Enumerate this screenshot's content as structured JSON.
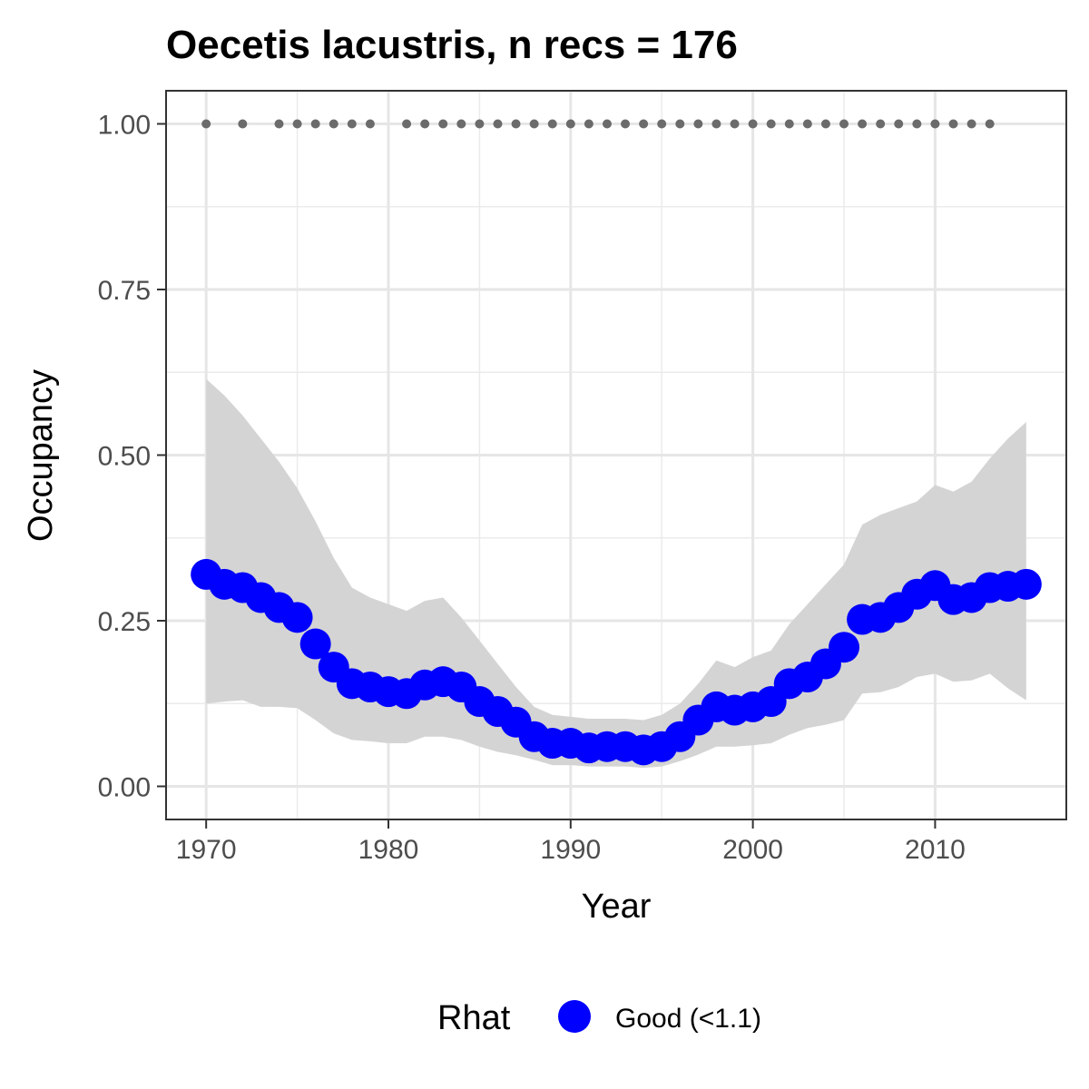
{
  "chart_data": {
    "type": "line",
    "title": "Oecetis lacustris, n recs = 176",
    "xlabel": "Year",
    "ylabel": "Occupancy",
    "xlim": [
      1967.8,
      2017.2
    ],
    "ylim": [
      -0.05,
      1.05
    ],
    "x_ticks": [
      1970,
      1980,
      1990,
      2000,
      2010
    ],
    "x_tick_labels": [
      "1970",
      "1980",
      "1990",
      "2000",
      "2010"
    ],
    "y_ticks": [
      0,
      0.25,
      0.5,
      0.75,
      1.0
    ],
    "y_tick_labels": [
      "0.00",
      "0.25",
      "0.50",
      "0.75",
      "1.00"
    ],
    "grid": true,
    "legend": {
      "title": "Rhat",
      "position": "bottom",
      "entries": [
        {
          "label": "Good (<1.1)",
          "color": "#0000ff"
        }
      ]
    },
    "x": [
      1970,
      1971,
      1972,
      1973,
      1974,
      1975,
      1976,
      1977,
      1978,
      1979,
      1980,
      1981,
      1982,
      1983,
      1984,
      1985,
      1986,
      1987,
      1988,
      1989,
      1990,
      1991,
      1992,
      1993,
      1994,
      1995,
      1996,
      1997,
      1998,
      1999,
      2000,
      2001,
      2002,
      2003,
      2004,
      2005,
      2006,
      2007,
      2008,
      2009,
      2010,
      2011,
      2012,
      2013,
      2014,
      2015
    ],
    "series": [
      {
        "role": "occupancy_mean",
        "color": "#0000ff",
        "values": [
          0.32,
          0.305,
          0.3,
          0.285,
          0.27,
          0.255,
          0.215,
          0.18,
          0.155,
          0.15,
          0.143,
          0.14,
          0.153,
          0.158,
          0.15,
          0.128,
          0.113,
          0.097,
          0.075,
          0.065,
          0.065,
          0.058,
          0.06,
          0.06,
          0.055,
          0.06,
          0.075,
          0.1,
          0.12,
          0.115,
          0.12,
          0.128,
          0.155,
          0.165,
          0.185,
          0.21,
          0.252,
          0.255,
          0.27,
          0.29,
          0.303,
          0.282,
          0.285,
          0.3,
          0.302,
          0.305
        ]
      },
      {
        "role": "credible_interval",
        "color": "#d4d4d4",
        "upper": [
          0.615,
          0.59,
          0.56,
          0.525,
          0.49,
          0.45,
          0.4,
          0.345,
          0.3,
          0.285,
          0.275,
          0.265,
          0.28,
          0.285,
          0.255,
          0.22,
          0.185,
          0.15,
          0.12,
          0.108,
          0.105,
          0.102,
          0.102,
          0.102,
          0.1,
          0.108,
          0.125,
          0.155,
          0.19,
          0.18,
          0.195,
          0.205,
          0.245,
          0.275,
          0.305,
          0.335,
          0.395,
          0.41,
          0.42,
          0.43,
          0.455,
          0.445,
          0.46,
          0.495,
          0.525,
          0.55
        ],
        "lower": [
          0.125,
          0.128,
          0.13,
          0.12,
          0.12,
          0.118,
          0.1,
          0.08,
          0.07,
          0.068,
          0.065,
          0.065,
          0.075,
          0.075,
          0.07,
          0.06,
          0.052,
          0.047,
          0.04,
          0.032,
          0.032,
          0.03,
          0.03,
          0.03,
          0.028,
          0.03,
          0.038,
          0.048,
          0.06,
          0.06,
          0.062,
          0.065,
          0.078,
          0.088,
          0.093,
          0.1,
          0.14,
          0.142,
          0.15,
          0.165,
          0.17,
          0.158,
          0.16,
          0.17,
          0.148,
          0.13
        ]
      },
      {
        "role": "record_years",
        "color": "#6b6b6b",
        "x": [
          1970,
          1972,
          1974,
          1975,
          1976,
          1977,
          1978,
          1979,
          1981,
          1982,
          1983,
          1984,
          1985,
          1986,
          1987,
          1988,
          1989,
          1990,
          1991,
          1992,
          1993,
          1994,
          1995,
          1996,
          1997,
          1998,
          1999,
          2000,
          2001,
          2002,
          2003,
          2004,
          2005,
          2006,
          2007,
          2008,
          2009,
          2010,
          2011,
          2012,
          2013
        ],
        "values": [
          1,
          1,
          1,
          1,
          1,
          1,
          1,
          1,
          1,
          1,
          1,
          1,
          1,
          1,
          1,
          1,
          1,
          1,
          1,
          1,
          1,
          1,
          1,
          1,
          1,
          1,
          1,
          1,
          1,
          1,
          1,
          1,
          1,
          1,
          1,
          1,
          1,
          1,
          1,
          1,
          1
        ]
      }
    ]
  }
}
